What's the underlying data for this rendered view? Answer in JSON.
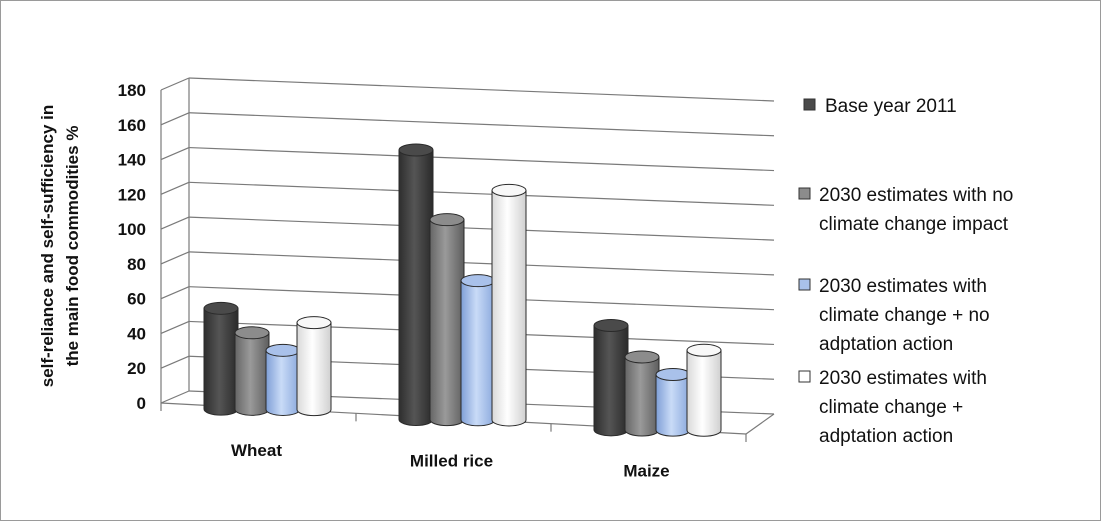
{
  "chart_data": {
    "type": "bar",
    "title": "",
    "xlabel": "",
    "ylabel": [
      "self-reliance and self-sufficiency in",
      "the main food commodities %"
    ],
    "ylim": [
      0,
      180
    ],
    "yticks": [
      0,
      20,
      40,
      60,
      80,
      100,
      120,
      140,
      160,
      180
    ],
    "grid": true,
    "legend_position": "right",
    "categories": [
      "Wheat",
      "Milled rice",
      "Maize"
    ],
    "series": [
      {
        "name": "Base year 2011",
        "legend_lines": [
          "Base year 2011"
        ],
        "color": "#4a4a4a",
        "values": [
          58,
          155,
          60
        ]
      },
      {
        "name": "2030 estimates with no climate change impact",
        "legend_lines": [
          "2030 estimates with no",
          "climate change impact"
        ],
        "color": "#8c8c8c",
        "values": [
          44,
          115,
          42
        ]
      },
      {
        "name": "2030 estimates with climate change + no adptation action",
        "legend_lines": [
          "2030 estimates  with",
          "climate change + no",
          "adptation action"
        ],
        "color": "#a9c1ea",
        "values": [
          34,
          80,
          32
        ]
      },
      {
        "name": "2030 estimates with climate change + adptation action",
        "legend_lines": [
          "2030 estimates  with",
          "climate change +",
          "adptation action"
        ],
        "color": "#f8f8f8",
        "values": [
          50,
          132,
          46
        ]
      }
    ]
  }
}
